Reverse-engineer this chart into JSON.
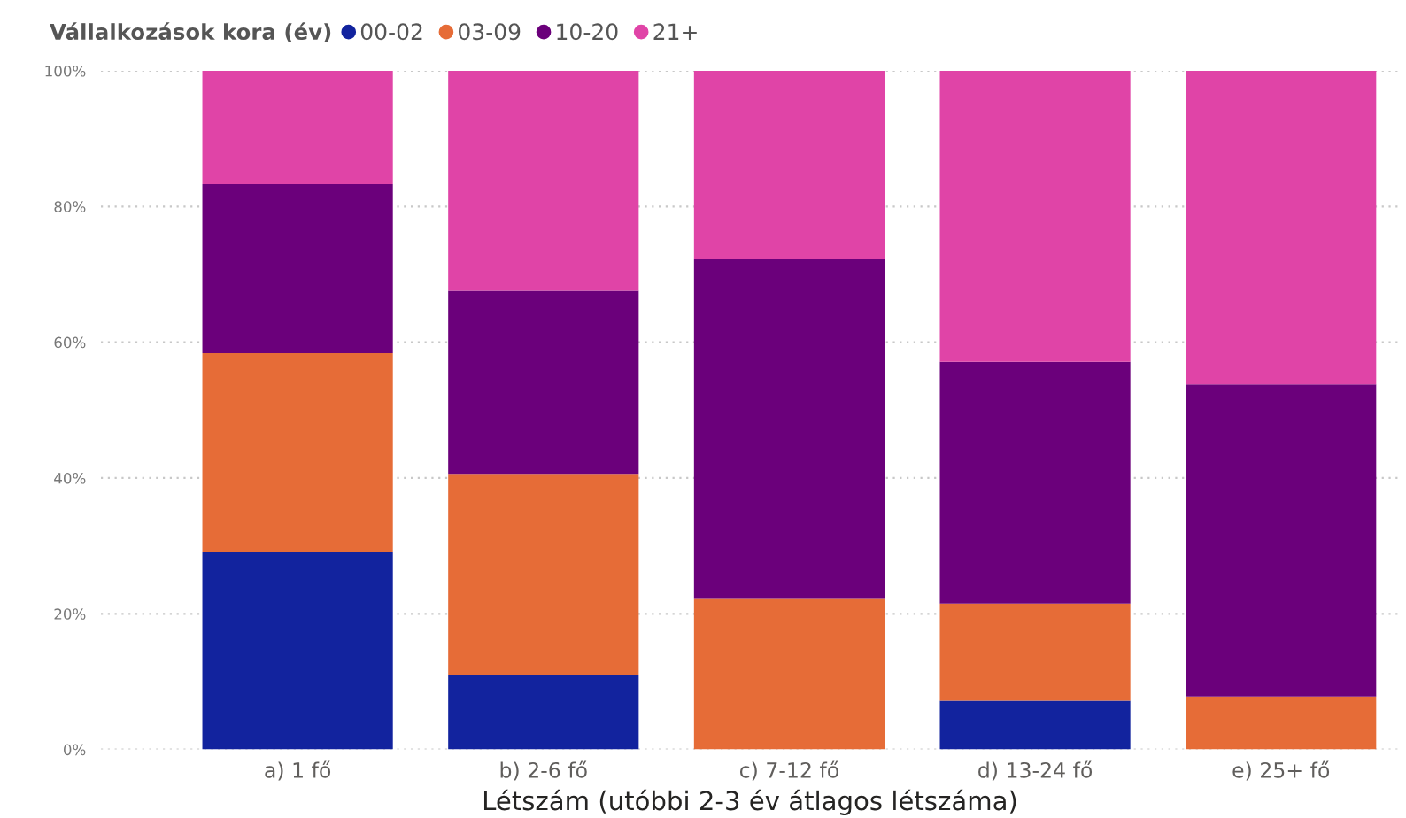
{
  "chart_data": {
    "type": "bar",
    "stacked": true,
    "legend_title": "Vállalkozások kora (év)",
    "legend": "top left",
    "xlabel": "Létszám (utóbbi 2-3 év átlagos létszáma)",
    "categories": [
      "a) 1 fő",
      "b) 2-6 fő",
      "c) 7-12 fő",
      "d) 13-24 fő",
      "e) 25+ fő"
    ],
    "series": [
      {
        "name": "00-02",
        "color": "#12239e",
        "values": [
          29.1,
          10.9,
          null,
          7.2,
          null
        ]
      },
      {
        "name": "03-09",
        "color": "#e66c37",
        "values": [
          29.3,
          29.7,
          22.2,
          14.3,
          7.8
        ]
      },
      {
        "name": "10-20",
        "color": "#6b007b",
        "values": [
          24.9,
          27.0,
          50.1,
          35.6,
          46.0
        ]
      },
      {
        "name": "21+",
        "color": "#e044a7",
        "values": [
          16.7,
          32.4,
          27.7,
          42.9,
          46.2
        ]
      }
    ],
    "ylim": [
      0,
      100
    ],
    "yticks": [
      {
        "value": 0,
        "label": "0%"
      },
      {
        "value": 20,
        "label": "20%"
      },
      {
        "value": 40,
        "label": "40%"
      },
      {
        "value": 60,
        "label": "60%"
      },
      {
        "value": 80,
        "label": "80%"
      },
      {
        "value": 100,
        "label": "100%"
      }
    ],
    "grid": "y"
  }
}
